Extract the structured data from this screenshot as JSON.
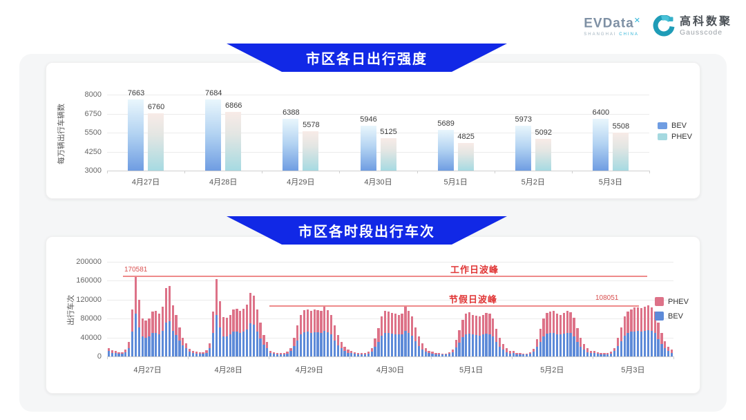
{
  "header": {
    "evdata": {
      "word": "EVData",
      "sup": "✕",
      "sub_gray": "SHANGHAI",
      "sub_blue": "CHINA"
    },
    "gausscode": {
      "cn": "高科数聚",
      "en": "Gausscode"
    }
  },
  "colors": {
    "banner_blue": "#1128e6",
    "bev_blue": "#5d8ad8",
    "phev_pink": "#dd7288",
    "legend_bev_daily": "#6f9de2",
    "legend_phev_daily": "#a5d9e0",
    "annotation_red": "#e03434",
    "ref_line_red": "#ee8a8a"
  },
  "chart_data": [
    {
      "type": "bar",
      "title": "市区各日出行强度",
      "ylabel": "每万辆出行车辆数",
      "ylim": [
        3000,
        8000
      ],
      "yticks": [
        3000,
        4250,
        5500,
        6750,
        8000
      ],
      "grid": true,
      "legend_position": "right",
      "categories": [
        "4月27日",
        "4月28日",
        "4月29日",
        "4月30日",
        "5月1日",
        "5月2日",
        "5月3日"
      ],
      "series": [
        {
          "name": "BEV",
          "values": [
            7663,
            7684,
            6388,
            5946,
            5689,
            5973,
            6400
          ]
        },
        {
          "name": "PHEV",
          "values": [
            6760,
            6866,
            5578,
            5125,
            4825,
            5092,
            5508
          ]
        }
      ],
      "legend": [
        "BEV",
        "PHEV"
      ]
    },
    {
      "type": "bar",
      "subtype": "stacked-hourly",
      "title": "市区各时段出行车次",
      "ylabel": "出行车次",
      "ylim": [
        0,
        200000
      ],
      "yticks": [
        0,
        40000,
        80000,
        120000,
        160000,
        200000
      ],
      "grid": true,
      "legend_position": "right",
      "categories": [
        "4月27日",
        "4月28日",
        "4月29日",
        "4月30日",
        "5月1日",
        "5月2日",
        "5月3日"
      ],
      "hours_per_day": 24,
      "series": [
        {
          "name": "BEV",
          "stack_order": 0,
          "values_per_day": [
            [
              11000,
              8000,
              7000,
              6000,
              6000,
              9000,
              18000,
              52000,
              90000,
              62000,
              42000,
              40000,
              42000,
              49000,
              50000,
              47000,
              54000,
              72000,
              74000,
              54000,
              45000,
              33000,
              23000,
              17000
            ],
            [
              10000,
              8000,
              6000,
              6000,
              6000,
              8000,
              17000,
              50000,
              88000,
              61000,
              43000,
              43000,
              46000,
              52000,
              52000,
              50000,
              52000,
              57000,
              70000,
              67000,
              52000,
              38000,
              25000,
              18000
            ],
            [
              7000,
              6000,
              5000,
              4000,
              4000,
              6000,
              11000,
              22000,
              34000,
              46000,
              51000,
              52000,
              50000,
              51000,
              51000,
              50000,
              54000,
              51000,
              46000,
              34000,
              24000,
              17000,
              12000,
              8000
            ],
            [
              7000,
              6000,
              5000,
              4000,
              4000,
              6000,
              10000,
              21000,
              31000,
              44000,
              50000,
              49000,
              48000,
              47000,
              46000,
              47000,
              54000,
              50000,
              44000,
              32000,
              22000,
              15000,
              10000,
              7000
            ],
            [
              6000,
              5000,
              4000,
              4000,
              4000,
              6000,
              9000,
              19000,
              29000,
              41000,
              47000,
              48000,
              46000,
              45000,
              44000,
              46000,
              48000,
              47000,
              42000,
              30000,
              21000,
              14000,
              9000,
              6000
            ],
            [
              7000,
              5000,
              4000,
              4000,
              4000,
              6000,
              10000,
              20000,
              30000,
              42000,
              48000,
              49000,
              50000,
              47000,
              46000,
              48000,
              50000,
              49000,
              43000,
              31000,
              21000,
              14000,
              9000,
              7000
            ],
            [
              7000,
              6000,
              5000,
              4000,
              4000,
              6000,
              11000,
              22000,
              32000,
              44000,
              49000,
              52000,
              53000,
              54000,
              53000,
              54000,
              56000,
              54000,
              49000,
              37000,
              26000,
              17000,
              11000,
              8000
            ]
          ]
        },
        {
          "name": "PHEV",
          "stack_order": 1,
          "values_per_day": [
            [
              7000,
              5000,
              4000,
              3000,
              3000,
              5000,
              12000,
              48000,
              80581,
              57000,
              39000,
              36000,
              39000,
              46000,
              46000,
              43000,
              51000,
              73000,
              75000,
              54000,
              43000,
              29000,
              17000,
              11000
            ],
            [
              6000,
              4000,
              4000,
              3000,
              3000,
              5000,
              11000,
              45000,
              76000,
              56000,
              40000,
              39000,
              42000,
              48000,
              49000,
              46000,
              49000,
              53000,
              64000,
              61000,
              48000,
              34000,
              20000,
              12000
            ],
            [
              5000,
              3000,
              3000,
              3000,
              3000,
              4000,
              7000,
              18000,
              31000,
              42000,
              47000,
              48000,
              47000,
              48000,
              47000,
              47000,
              51000,
              47000,
              42000,
              31000,
              21000,
              13000,
              8000,
              6000
            ],
            [
              4000,
              3000,
              3000,
              3000,
              3000,
              4000,
              7000,
              17000,
              29000,
              41000,
              47000,
              46000,
              44000,
              43000,
              42000,
              43000,
              51000,
              46000,
              41000,
              30000,
              20000,
              13000,
              8000,
              5000
            ],
            [
              4000,
              3000,
              3000,
              2000,
              2000,
              3000,
              6000,
              16000,
              26000,
              37000,
              43000,
              45000,
              42000,
              41000,
              41000,
              42000,
              44000,
              43000,
              38000,
              28000,
              19000,
              12000,
              8000,
              5000
            ],
            [
              4000,
              3000,
              3000,
              2000,
              2000,
              3000,
              6000,
              16000,
              28000,
              38000,
              44000,
              46000,
              46000,
              43000,
              42000,
              44000,
              46000,
              45000,
              39000,
              29000,
              19000,
              13000,
              8000,
              5000
            ],
            [
              5000,
              3000,
              3000,
              3000,
              3000,
              4000,
              7000,
              18000,
              30000,
              41000,
              46000,
              48000,
              50000,
              50000,
              49000,
              51000,
              52051,
              50000,
              46000,
              35000,
              24000,
              15000,
              9000,
              6000
            ]
          ]
        }
      ],
      "legend": [
        "PHEV",
        "BEV"
      ],
      "annotations": [
        {
          "id": "workday_peak",
          "label": "工作日波峰",
          "value": 170581,
          "value_label": "170581"
        },
        {
          "id": "holiday_peak",
          "label": "节假日波峰",
          "value": 108051,
          "value_label": "108051"
        }
      ]
    }
  ]
}
